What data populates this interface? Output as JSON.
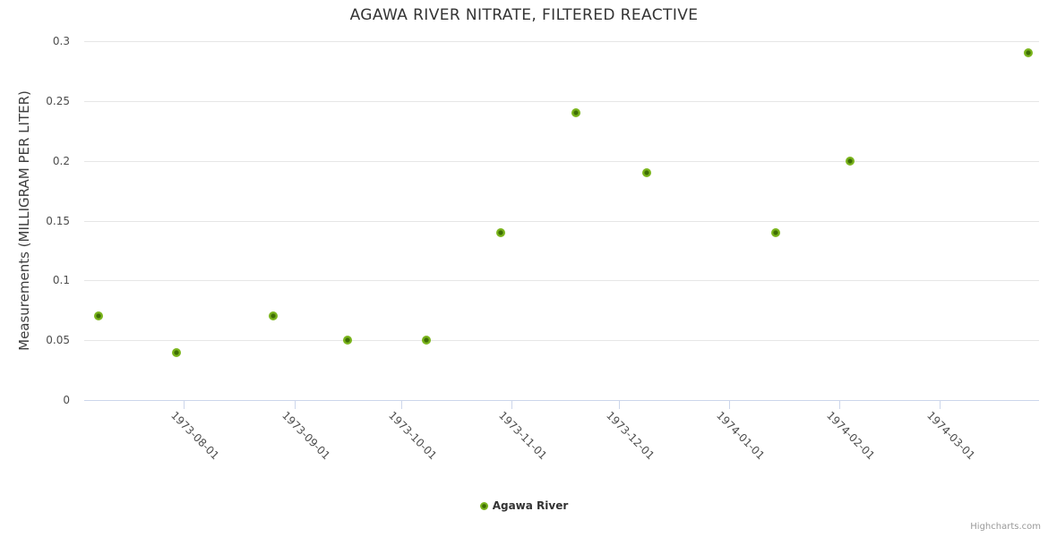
{
  "chart": {
    "credit": "Highcharts.com"
  },
  "chart_data": {
    "type": "scatter",
    "title": "AGAWA RIVER NITRATE, FILTERED REACTIVE",
    "xlabel": "",
    "ylabel": "Measurements (MILLIGRAM PER LITER)",
    "ylim": [
      0,
      0.3
    ],
    "yticks": [
      {
        "value": 0,
        "label": "0"
      },
      {
        "value": 0.05,
        "label": "0.05"
      },
      {
        "value": 0.1,
        "label": "0.1"
      },
      {
        "value": 0.15,
        "label": "0.15"
      },
      {
        "value": 0.2,
        "label": "0.2"
      },
      {
        "value": 0.25,
        "label": "0.25"
      },
      {
        "value": 0.3,
        "label": "0.3"
      }
    ],
    "xlim": [
      "1973-07-04",
      "1974-03-29"
    ],
    "xticks": [
      "1973-08-01",
      "1973-09-01",
      "1973-10-01",
      "1973-11-01",
      "1973-12-01",
      "1974-01-01",
      "1974-02-01",
      "1974-03-01"
    ],
    "grid": true,
    "legend_position": "bottom",
    "colors": {
      "marker_outer": "#7bb51d",
      "marker_inner": "#3e6e04",
      "gridline": "#e6e6e6",
      "axis_line": "#ccd6eb",
      "title_text": "#333333",
      "label_text": "#4d4d4d",
      "credit_text": "#999999"
    },
    "series": [
      {
        "name": "Agawa River",
        "points": [
          {
            "date": "1973-07-08",
            "value": 0.07
          },
          {
            "date": "1973-07-30",
            "value": 0.04
          },
          {
            "date": "1973-08-26",
            "value": 0.07
          },
          {
            "date": "1973-09-16",
            "value": 0.05
          },
          {
            "date": "1973-10-08",
            "value": 0.05
          },
          {
            "date": "1973-10-29",
            "value": 0.14
          },
          {
            "date": "1973-11-19",
            "value": 0.24
          },
          {
            "date": "1973-12-09",
            "value": 0.19
          },
          {
            "date": "1974-02-04",
            "value": 0.2
          },
          {
            "date": "1974-01-14",
            "value": 0.14
          },
          {
            "date": "1974-03-26",
            "value": 0.29
          }
        ]
      }
    ]
  }
}
